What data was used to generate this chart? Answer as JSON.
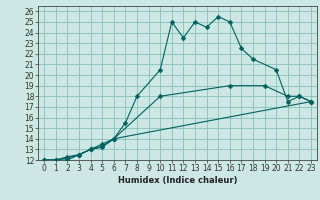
{
  "xlabel": "Humidex (Indice chaleur)",
  "xlim": [
    -0.5,
    23.5
  ],
  "ylim": [
    12,
    26.5
  ],
  "xticks": [
    0,
    1,
    2,
    3,
    4,
    5,
    6,
    7,
    8,
    9,
    10,
    11,
    12,
    13,
    14,
    15,
    16,
    17,
    18,
    19,
    20,
    21,
    22,
    23
  ],
  "yticks": [
    12,
    13,
    14,
    15,
    16,
    17,
    18,
    19,
    20,
    21,
    22,
    23,
    24,
    25,
    26
  ],
  "bg_color": "#cde8e4",
  "grid_color": "#7ab8b0",
  "line_color": "#006060",
  "line1_x": [
    0,
    1,
    2,
    3,
    4,
    5,
    6,
    7,
    8,
    10,
    11,
    12,
    13,
    14,
    15,
    16,
    17,
    18,
    20,
    21,
    22,
    23
  ],
  "line1_y": [
    12,
    12,
    12,
    12.5,
    13,
    13.5,
    14,
    15.5,
    18,
    20.5,
    25,
    23.5,
    25,
    24.5,
    25.5,
    25,
    22.5,
    21.5,
    20.5,
    17.5,
    18,
    17.5
  ],
  "line2_x": [
    0,
    1,
    2,
    3,
    4,
    5,
    6,
    10,
    16,
    19,
    21,
    22,
    23
  ],
  "line2_y": [
    12,
    12,
    12.3,
    12.5,
    13,
    13.3,
    14,
    18,
    19,
    19,
    18,
    18,
    17.5
  ],
  "line3_x": [
    0,
    1,
    2,
    3,
    4,
    5,
    6,
    23
  ],
  "line3_y": [
    12,
    12,
    12.2,
    12.5,
    13,
    13.2,
    14,
    17.5
  ],
  "tick_fontsize": 5.5,
  "xlabel_fontsize": 6.0
}
